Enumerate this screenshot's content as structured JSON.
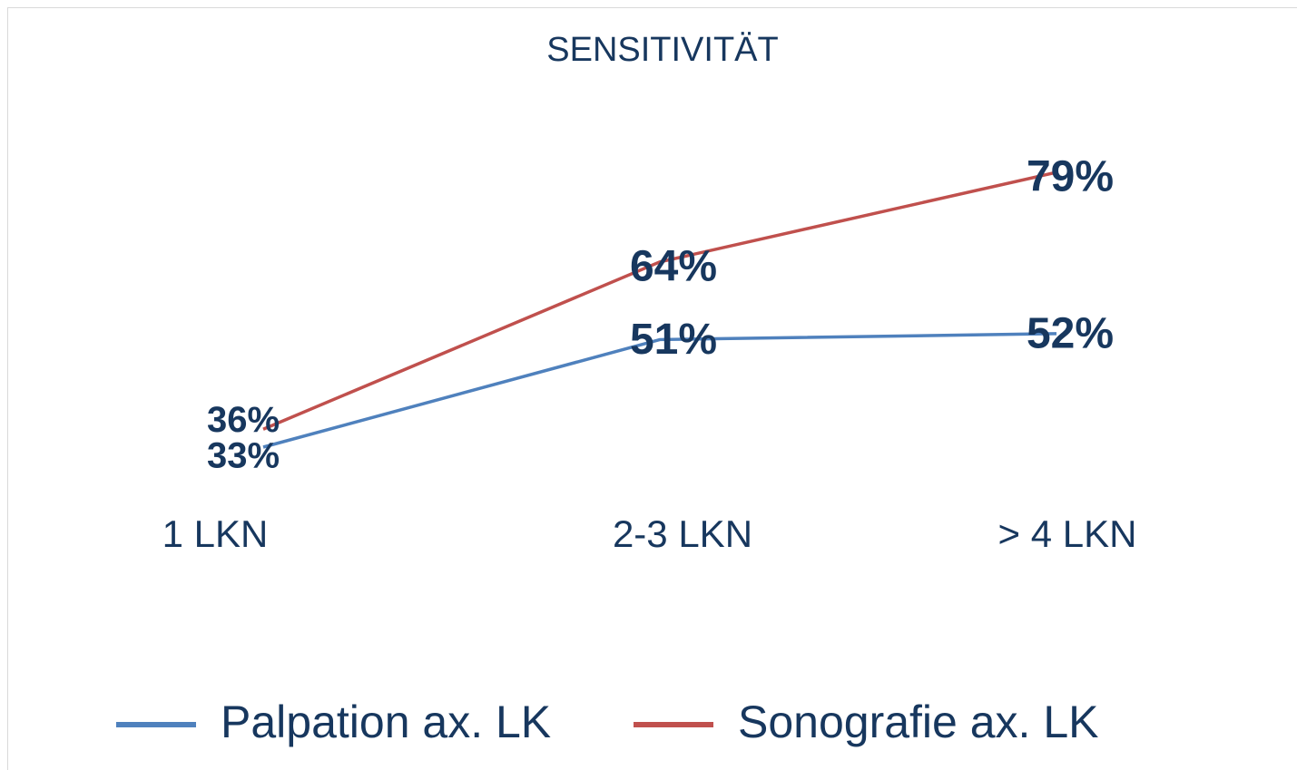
{
  "chart_data": {
    "type": "line",
    "title": "SENSITIVITÄT",
    "categories": [
      "1 LKN",
      "2-3 LKN",
      "> 4 LKN"
    ],
    "series": [
      {
        "name": "Palpation ax. LK",
        "color": "#4f81bd",
        "values": [
          33,
          51,
          52
        ],
        "value_labels": [
          "33%",
          "51%",
          "52%"
        ]
      },
      {
        "name": "Sonografie ax. LK",
        "color": "#c0504d",
        "values": [
          36,
          64,
          79
        ],
        "value_labels": [
          "36%",
          "64%",
          "79%"
        ]
      }
    ],
    "legend": "bottom"
  }
}
